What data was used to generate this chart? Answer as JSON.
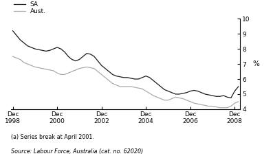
{
  "ylabel": "%",
  "ylim": [
    4,
    10
  ],
  "yticks": [
    4,
    5,
    6,
    7,
    8,
    9,
    10
  ],
  "footnote1": "(a) Series break at April 2001.",
  "footnote2": "Source: Labour Force, Australia (cat. no. 62020)",
  "legend_SA": "SA",
  "legend_Aust": "Aust.",
  "line_color_SA": "#1a1a1a",
  "line_color_Aust": "#aaaaaa",
  "background_color": "#ffffff",
  "xtick_labels": [
    "Dec\n1998",
    "Dec\n2000",
    "Dec\n2002",
    "Dec\n2004",
    "Dec\n2006",
    "Dec\n2008"
  ],
  "xtick_positions": [
    0,
    24,
    48,
    72,
    96,
    120
  ],
  "SA_x": [
    0,
    2,
    4,
    6,
    8,
    10,
    12,
    14,
    16,
    18,
    20,
    22,
    24,
    26,
    28,
    30,
    32,
    34,
    36,
    38,
    40,
    42,
    44,
    46,
    48,
    50,
    52,
    54,
    56,
    58,
    60,
    62,
    64,
    66,
    68,
    70,
    72,
    74,
    76,
    78,
    80,
    82,
    84,
    86,
    88,
    90,
    92,
    94,
    96,
    98,
    100,
    102,
    104,
    106,
    108,
    110,
    112,
    114,
    116,
    118,
    120,
    122
  ],
  "SA_y": [
    9.2,
    8.9,
    8.6,
    8.4,
    8.2,
    8.1,
    8.0,
    7.95,
    7.9,
    7.85,
    7.9,
    8.0,
    8.1,
    8.0,
    7.8,
    7.5,
    7.3,
    7.2,
    7.3,
    7.5,
    7.7,
    7.65,
    7.5,
    7.2,
    6.9,
    6.7,
    6.5,
    6.3,
    6.2,
    6.15,
    6.1,
    6.1,
    6.05,
    6.0,
    6.0,
    6.1,
    6.2,
    6.1,
    5.9,
    5.7,
    5.5,
    5.3,
    5.2,
    5.1,
    5.0,
    5.0,
    5.05,
    5.1,
    5.2,
    5.25,
    5.2,
    5.1,
    5.0,
    4.95,
    4.9,
    4.85,
    4.85,
    4.9,
    4.8,
    4.75,
    5.2,
    5.5
  ],
  "Aust_x": [
    0,
    2,
    4,
    6,
    8,
    10,
    12,
    14,
    16,
    18,
    20,
    22,
    24,
    26,
    28,
    30,
    32,
    34,
    36,
    38,
    40,
    42,
    44,
    46,
    48,
    50,
    52,
    54,
    56,
    58,
    60,
    62,
    64,
    66,
    68,
    70,
    72,
    74,
    76,
    78,
    80,
    82,
    84,
    86,
    88,
    90,
    92,
    94,
    96,
    98,
    100,
    102,
    104,
    106,
    108,
    110,
    112,
    114,
    116,
    118,
    120,
    122
  ],
  "Aust_y": [
    7.5,
    7.4,
    7.3,
    7.1,
    7.0,
    6.9,
    6.8,
    6.75,
    6.7,
    6.65,
    6.6,
    6.55,
    6.4,
    6.3,
    6.3,
    6.4,
    6.5,
    6.6,
    6.7,
    6.75,
    6.8,
    6.75,
    6.7,
    6.5,
    6.3,
    6.1,
    5.9,
    5.7,
    5.6,
    5.5,
    5.5,
    5.5,
    5.5,
    5.45,
    5.4,
    5.35,
    5.2,
    5.05,
    4.9,
    4.8,
    4.7,
    4.6,
    4.6,
    4.7,
    4.8,
    4.75,
    4.7,
    4.6,
    4.5,
    4.4,
    4.35,
    4.3,
    4.25,
    4.2,
    4.2,
    4.15,
    4.1,
    4.1,
    4.1,
    4.2,
    4.4,
    4.5
  ]
}
